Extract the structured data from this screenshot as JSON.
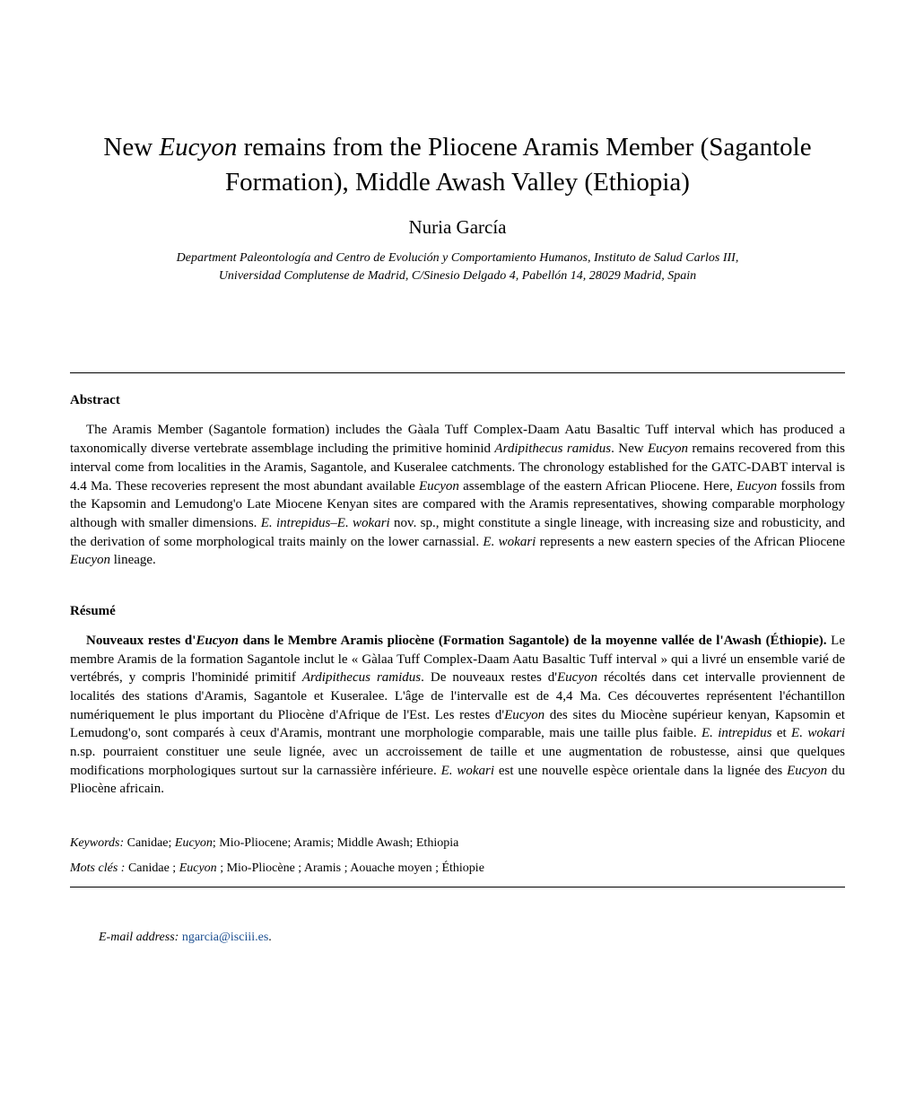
{
  "title": {
    "prefix": "New ",
    "italic1": "Eucyon",
    "rest": " remains from the Pliocene Aramis Member (Sagantole Formation), Middle Awash Valley (Ethiopia)"
  },
  "author": "Nuria García",
  "affiliation_line1": "Department Paleontología and Centro de Evolución y Comportamiento Humanos, Instituto de Salud Carlos III,",
  "affiliation_line2": "Universidad Complutense de Madrid, C/Sinesio Delgado 4, Pabellón 14, 28029 Madrid, Spain",
  "abstract": {
    "heading": "Abstract",
    "p1a": "The Aramis Member (Sagantole formation) includes the Gàala Tuff Complex-Daam Aatu Basaltic Tuff interval which has produced a taxonomically diverse vertebrate assemblage including the primitive hominid ",
    "p1_it1": "Ardipithecus ramidus",
    "p1b": ". New ",
    "p1_it2": "Eucyon",
    "p1c": " remains recovered from this interval come from localities in the Aramis, Sagantole, and Kuseralee catchments. The chronology established for the GATC-DABT interval is 4.4 Ma. These recoveries represent the most abundant available ",
    "p1_it3": "Eucyon",
    "p1d": " assemblage of the eastern African Pliocene. Here, ",
    "p1_it4": "Eucyon",
    "p1e": " fossils from the Kapsomin and Lemudong'o Late Miocene Kenyan sites are compared with the Aramis representatives, showing comparable morphology although with smaller dimensions. ",
    "p1_it5": "E. intrepidus–E. wokari",
    "p1f": " nov. sp., might constitute a single lineage, with increasing size and robusticity, and the derivation of some morphological traits mainly on the lower carnassial. ",
    "p1_it6": "E. wokari",
    "p1g": " represents a new eastern species of the African Pliocene ",
    "p1_it7": "Eucyon",
    "p1h": " lineage."
  },
  "resume": {
    "heading": "Résumé",
    "bold_prefix": "Nouveaux restes d'",
    "bold_italic1": "Eucyon",
    "bold_mid": " dans le Membre Aramis pliocène (Formation Sagantole) de la moyenne vallée de l'Awash (Éthiopie).",
    "p1a": " Le membre Aramis de la formation Sagantole inclut le « Gàlaa Tuff Complex-Daam Aatu Basaltic Tuff interval » qui a livré un ensemble varié de vertébrés, y compris l'hominidé primitif ",
    "p1_it1": "Ardipithecus ramidus",
    "p1b": ". De nouveaux restes d'",
    "p1_it2": "Eucyon",
    "p1c": " récoltés dans cet intervalle proviennent de localités des stations d'Aramis, Sagantole et Kuseralee. L'âge de l'intervalle est de 4,4 Ma. Ces découvertes représentent l'échantillon numériquement le plus important du Pliocène d'Afrique de l'Est. Les restes d'",
    "p1_it3": "Eucyon",
    "p1d": " des sites du Miocène supérieur kenyan, Kapsomin et Lemudong'o, sont comparés à ceux d'Aramis, montrant une morphologie comparable, mais une taille plus faible. ",
    "p1_it4": "E. intrepidus",
    "p1e": " et ",
    "p1_it5": "E. wokari",
    "p1f": " n.sp. pourraient constituer une seule lignée, avec un accroissement de taille et une augmentation de robustesse, ainsi que quelques modifications morphologiques surtout sur la carnassière inférieure. ",
    "p1_it6": "E. wokari",
    "p1g": " est une nouvelle espèce orientale dans la lignée des ",
    "p1_it7": "Eucyon",
    "p1h": " du Pliocène africain."
  },
  "keywords": {
    "label": "Keywords:",
    "values_prefix": "  Canidae; ",
    "italic1": "Eucyon",
    "values_rest": "; Mio-Pliocene; Aramis; Middle Awash; Ethiopia"
  },
  "motscles": {
    "label": "Mots clés  :",
    "values_prefix": "  Canidae ; ",
    "italic1": "Eucyon",
    "values_rest": " ; Mio-Pliocène ; Aramis ; Aouache moyen ; Éthiopie"
  },
  "email": {
    "label": "E-mail address:",
    "address": "ngarcia@isciii.es",
    "suffix": "."
  }
}
